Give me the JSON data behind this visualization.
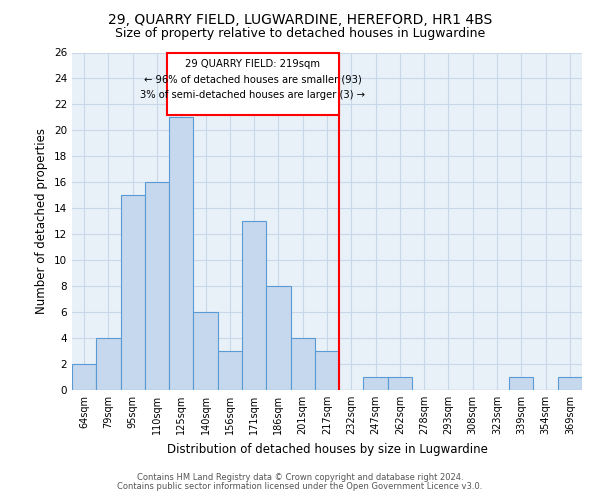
{
  "title": "29, QUARRY FIELD, LUGWARDINE, HEREFORD, HR1 4BS",
  "subtitle": "Size of property relative to detached houses in Lugwardine",
  "xlabel": "Distribution of detached houses by size in Lugwardine",
  "ylabel": "Number of detached properties",
  "categories": [
    "64sqm",
    "79sqm",
    "95sqm",
    "110sqm",
    "125sqm",
    "140sqm",
    "156sqm",
    "171sqm",
    "186sqm",
    "201sqm",
    "217sqm",
    "232sqm",
    "247sqm",
    "262sqm",
    "278sqm",
    "293sqm",
    "308sqm",
    "323sqm",
    "339sqm",
    "354sqm",
    "369sqm"
  ],
  "values": [
    2,
    4,
    15,
    16,
    21,
    6,
    3,
    13,
    8,
    4,
    3,
    0,
    1,
    1,
    0,
    0,
    0,
    0,
    1,
    0,
    1
  ],
  "bar_color": "#c5d8ed",
  "bar_edge_color": "#5b9bd5",
  "vline_position": 10.5,
  "annotation_line1": "29 QUARRY FIELD: 219sqm",
  "annotation_line2": "← 96% of detached houses are smaller (93)",
  "annotation_line3": "3% of semi-detached houses are larger (3) →",
  "ylim": [
    0,
    26
  ],
  "yticks": [
    0,
    2,
    4,
    6,
    8,
    10,
    12,
    14,
    16,
    18,
    20,
    22,
    24,
    26
  ],
  "footnote1": "Contains HM Land Registry data © Crown copyright and database right 2024.",
  "footnote2": "Contains public sector information licensed under the Open Government Licence v3.0.",
  "bg_color": "#ffffff",
  "grid_color": "#c8d8e8",
  "title_fontsize": 10,
  "subtitle_fontsize": 9,
  "xlabel_fontsize": 8.5,
  "ylabel_fontsize": 8.5
}
